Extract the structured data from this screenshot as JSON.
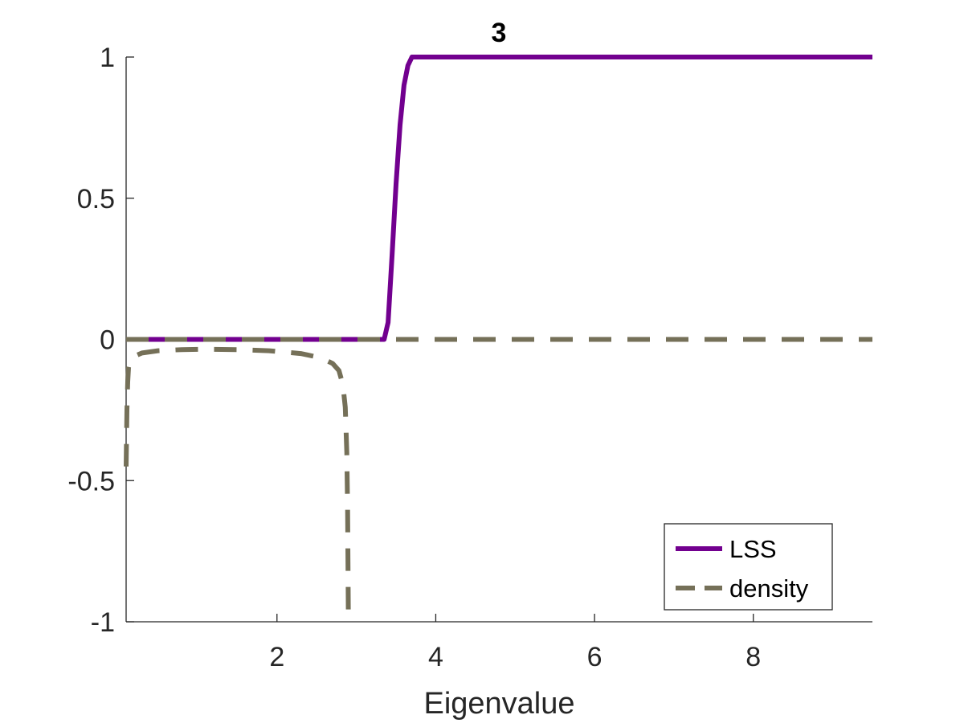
{
  "chart_data": {
    "type": "line",
    "title": "3",
    "xlabel": "Eigenvalue",
    "ylabel": "",
    "xlim": [
      0.1,
      9.5
    ],
    "ylim": [
      -1,
      1
    ],
    "xticks": [
      2,
      4,
      6,
      8
    ],
    "yticks": [
      -1,
      -0.5,
      0,
      0.5,
      1
    ],
    "xtick_labels": [
      "2",
      "4",
      "6",
      "8"
    ],
    "ytick_labels": [
      "-1",
      "-0.5",
      "0",
      "0.5",
      "1"
    ],
    "grid": false,
    "legend_position": "bottom-right",
    "series": [
      {
        "name": "LSS",
        "color": "#72008f",
        "style": "solid",
        "x": [
          0.1,
          1.0,
          2.0,
          3.0,
          3.35,
          3.4,
          3.45,
          3.5,
          3.55,
          3.6,
          3.65,
          3.7,
          3.75,
          4.0,
          5.0,
          6.0,
          7.0,
          8.0,
          9.0,
          9.5
        ],
        "y": [
          0,
          0,
          0,
          0,
          0,
          0.06,
          0.3,
          0.55,
          0.76,
          0.9,
          0.97,
          1.0,
          1.0,
          1.0,
          1.0,
          1.0,
          1.0,
          1.0,
          1.0,
          1.0
        ]
      },
      {
        "name": "density",
        "color": "#757058",
        "style": "dashed",
        "x": [
          0.1,
          0.11,
          0.12,
          0.13,
          0.15,
          0.2,
          0.3,
          0.5,
          0.8,
          1.1,
          1.5,
          1.9,
          2.3,
          2.55,
          2.7,
          2.78,
          2.83,
          2.86,
          2.88,
          2.89,
          2.895,
          2.9
        ],
        "y": [
          -0.45,
          -0.25,
          -0.15,
          -0.1,
          -0.075,
          -0.06,
          -0.048,
          -0.04,
          -0.036,
          -0.035,
          -0.036,
          -0.04,
          -0.05,
          -0.065,
          -0.085,
          -0.11,
          -0.16,
          -0.24,
          -0.4,
          -0.6,
          -0.8,
          -1.0
        ],
        "baseline": {
          "x": [
            0.1,
            9.5
          ],
          "y": [
            0,
            0
          ]
        }
      }
    ]
  }
}
